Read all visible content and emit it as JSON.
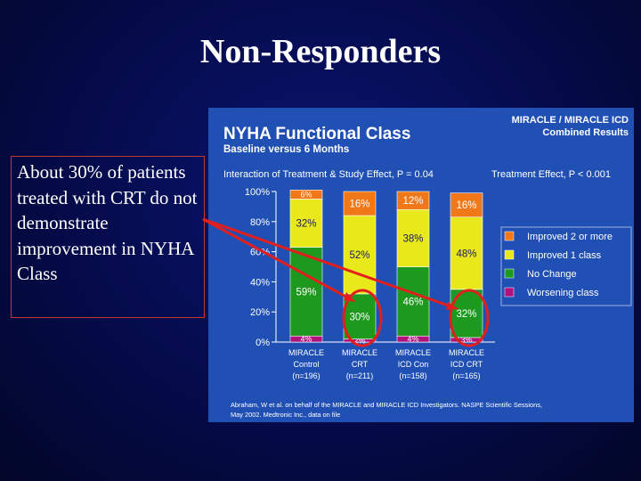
{
  "slide": {
    "title": "Non-Responders",
    "callout": "About 30% of patients treated with CRT do not demonstrate improvement in NYHA Class"
  },
  "chart_data": {
    "type": "bar",
    "stacked": true,
    "title": "NYHA Functional Class",
    "subtitle": "Baseline versus 6 Months",
    "corner_title": [
      "MIRACLE / MIRACLE ICD",
      "Combined Results"
    ],
    "interaction_text": "Interaction of Treatment & Study Effect, P = 0.04",
    "treatment_text": "Treatment Effect, P < 0.001",
    "y_ticks": [
      "100%",
      "80%",
      "60%",
      "40%",
      "20%",
      "0%"
    ],
    "ylim": [
      0,
      100
    ],
    "grid": false,
    "categories": [
      {
        "line1": "MIRACLE",
        "line2": "Control",
        "n": "(n=196)"
      },
      {
        "line1": "MIRACLE",
        "line2": "CRT",
        "n": "(n=211)"
      },
      {
        "line1": "MIRACLE",
        "line2": "ICD Con",
        "n": "(n=158)"
      },
      {
        "line1": "MIRACLE",
        "line2": "ICD CRT",
        "n": "(n=165)"
      }
    ],
    "series": [
      {
        "name": "Worsening class",
        "color": "#b0107a",
        "values": [
          4,
          2,
          4,
          3
        ],
        "labels": [
          "4%",
          "2%",
          "4%",
          "3%"
        ]
      },
      {
        "name": "No Change",
        "color": "#1d9a1d",
        "values": [
          59,
          30,
          46,
          32
        ],
        "labels": [
          "59%",
          "30%",
          "46%",
          "32%"
        ]
      },
      {
        "name": "Improved 1 class",
        "color": "#e8e81a",
        "values": [
          32,
          52,
          38,
          48
        ],
        "labels": [
          "32%",
          "52%",
          "38%",
          "48%"
        ]
      },
      {
        "name": "Improved 2 or more",
        "color": "#f07818",
        "values": [
          6,
          16,
          12,
          16
        ],
        "labels": [
          "6%",
          "16%",
          "12%",
          "16%"
        ]
      }
    ],
    "legend": [
      "Improved 2 or more",
      "Improved 1 class",
      "No Change",
      "Worsening class"
    ],
    "legend_placement": "right",
    "citation": [
      "Abraham, W et al. on behalf of the MIRACLE and MIRACLE ICD Investigators. NASPE Scientific Sessions,",
      "May 2002. Medtronic Inc., data on file"
    ]
  }
}
